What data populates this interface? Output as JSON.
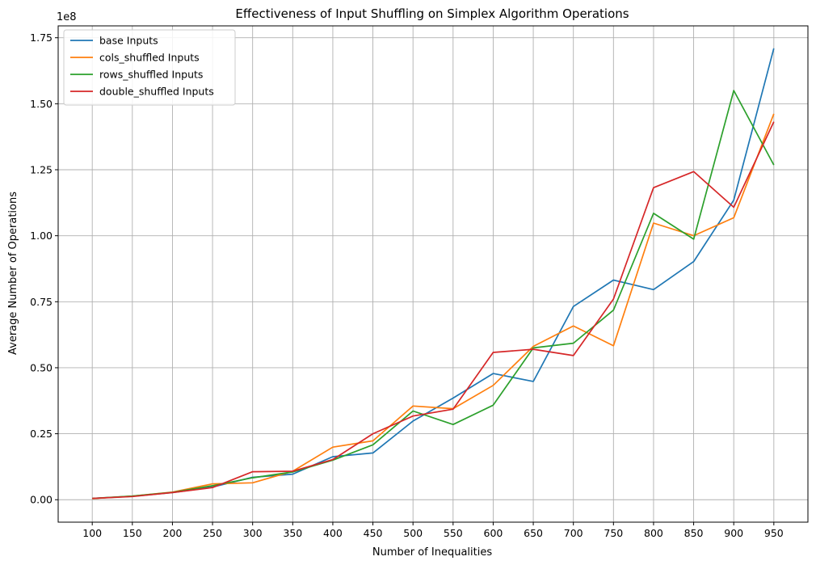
{
  "chart_data": {
    "type": "line",
    "title": "Effectiveness of Input Shuffling on Simplex Algorithm Operations",
    "xlabel": "Number of Inequalities",
    "ylabel": "Average Number of Operations",
    "y_offset_label": "1e8",
    "x": [
      100,
      150,
      200,
      250,
      300,
      350,
      400,
      450,
      500,
      550,
      600,
      650,
      700,
      750,
      800,
      850,
      900,
      950
    ],
    "x_tick_labels": [
      "100",
      "150",
      "200",
      "250",
      "300",
      "350",
      "400",
      "450",
      "500",
      "550",
      "600",
      "650",
      "700",
      "750",
      "800",
      "850",
      "900",
      "950"
    ],
    "y_ticks": [
      0,
      0.25,
      0.5,
      0.75,
      1.0,
      1.25,
      1.5,
      1.75
    ],
    "y_tick_labels": [
      "0.00",
      "0.25",
      "0.50",
      "0.75",
      "1.00",
      "1.25",
      "1.50",
      "1.75"
    ],
    "xlim": [
      57.5,
      992.5
    ],
    "ylim": [
      -0.085,
      1.795
    ],
    "y_units": "1e8",
    "grid": true,
    "legend_position": "upper-left",
    "series": [
      {
        "name": "base Inputs",
        "color": "#1f77b4",
        "values": [
          0.005,
          0.013,
          0.027,
          0.048,
          0.085,
          0.097,
          0.163,
          0.177,
          0.298,
          0.385,
          0.478,
          0.448,
          0.732,
          0.832,
          0.796,
          0.902,
          1.135,
          1.71
        ]
      },
      {
        "name": "cols_shuffled Inputs",
        "color": "#ff7f0e",
        "values": [
          0.004,
          0.014,
          0.029,
          0.06,
          0.064,
          0.108,
          0.199,
          0.223,
          0.355,
          0.345,
          0.433,
          0.581,
          0.658,
          0.583,
          1.048,
          1.0,
          1.068,
          1.462
        ]
      },
      {
        "name": "rows_shuffled Inputs",
        "color": "#2ca02c",
        "values": [
          0.005,
          0.014,
          0.028,
          0.053,
          0.083,
          0.105,
          0.15,
          0.208,
          0.336,
          0.285,
          0.358,
          0.575,
          0.593,
          0.718,
          1.085,
          0.987,
          1.55,
          1.268
        ]
      },
      {
        "name": "double_shuffled Inputs",
        "color": "#d62728",
        "values": [
          0.005,
          0.012,
          0.027,
          0.046,
          0.106,
          0.108,
          0.152,
          0.25,
          0.317,
          0.343,
          0.558,
          0.57,
          0.546,
          0.76,
          1.182,
          1.243,
          1.108,
          1.432
        ]
      }
    ]
  }
}
